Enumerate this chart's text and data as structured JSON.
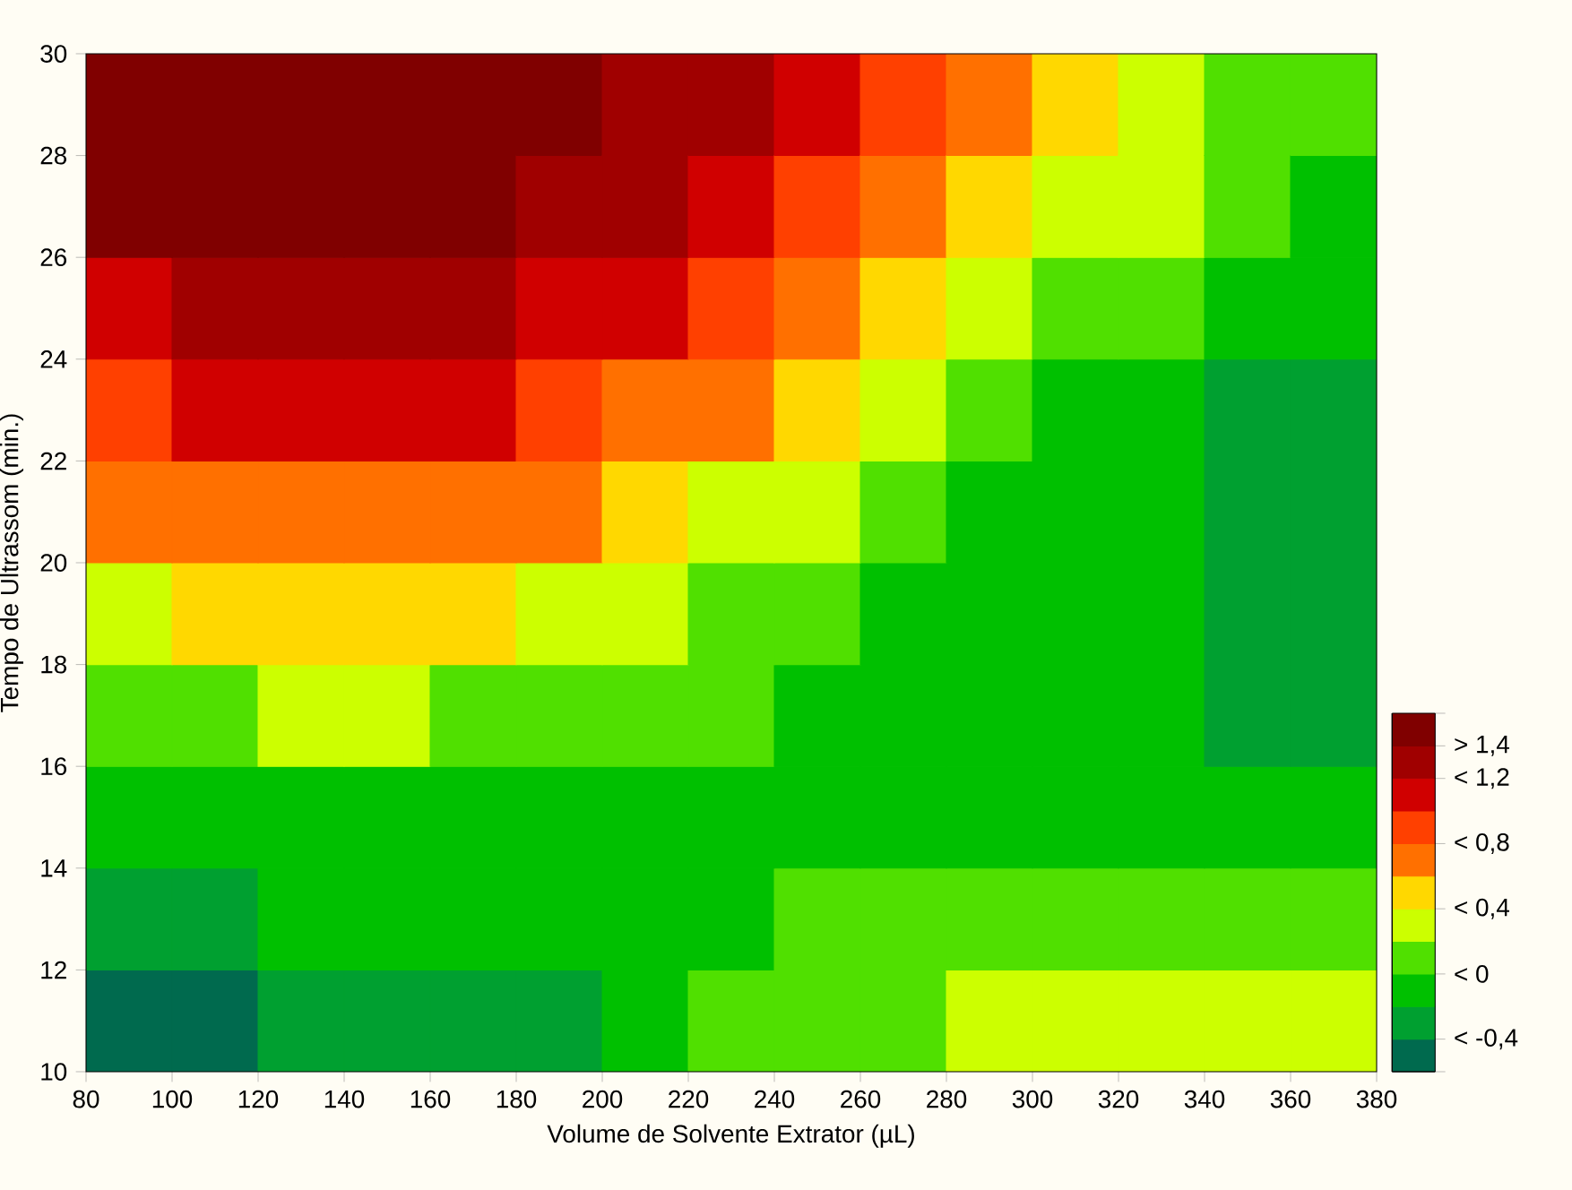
{
  "chart_data": {
    "type": "heatmap",
    "xlabel": "Volume de Solvente Extrator (µL)",
    "ylabel": "Tempo de Ultrassom (min.)",
    "xlim": [
      80,
      380
    ],
    "xticks": [
      {
        "value": 80,
        "label": "80"
      },
      {
        "value": 100,
        "label": "100"
      },
      {
        "value": 120,
        "label": "120"
      },
      {
        "value": 140,
        "label": "140"
      },
      {
        "value": 160,
        "label": "160"
      },
      {
        "value": 180,
        "label": "180"
      },
      {
        "value": 200,
        "label": "200"
      },
      {
        "value": 220,
        "label": "220"
      },
      {
        "value": 240,
        "label": "240"
      },
      {
        "value": 260,
        "label": "260"
      },
      {
        "value": 280,
        "label": "280"
      },
      {
        "value": 300,
        "label": "300"
      },
      {
        "value": 320,
        "label": "320"
      },
      {
        "value": 340,
        "label": "340"
      },
      {
        "value": 360,
        "label": "360"
      },
      {
        "value": 380,
        "label": "380"
      }
    ],
    "ylim": [
      10,
      30
    ],
    "yticks": [
      {
        "value": 10,
        "label": "10"
      },
      {
        "value": 12,
        "label": "12"
      },
      {
        "value": 14,
        "label": "14"
      },
      {
        "value": 16,
        "label": "16"
      },
      {
        "value": 18,
        "label": "18"
      },
      {
        "value": 20,
        "label": "20"
      },
      {
        "value": 22,
        "label": "22"
      },
      {
        "value": 24,
        "label": "24"
      },
      {
        "value": 26,
        "label": "26"
      },
      {
        "value": 28,
        "label": "28"
      },
      {
        "value": 30,
        "label": "30"
      }
    ],
    "cells": [
      [
        1.5,
        1.5,
        1.5,
        1.5,
        1.5,
        1.5,
        1.3,
        1.3,
        1.1,
        0.9,
        0.7,
        0.5,
        0.3,
        0.1,
        0.1
      ],
      [
        1.5,
        1.5,
        1.5,
        1.5,
        1.5,
        1.3,
        1.3,
        1.1,
        0.9,
        0.7,
        0.5,
        0.3,
        0.3,
        0.1,
        -0.1
      ],
      [
        1.1,
        1.3,
        1.3,
        1.3,
        1.3,
        1.1,
        1.1,
        0.9,
        0.7,
        0.5,
        0.3,
        0.1,
        0.1,
        -0.1,
        -0.1
      ],
      [
        0.9,
        1.1,
        1.1,
        1.1,
        1.1,
        0.9,
        0.7,
        0.7,
        0.5,
        0.3,
        0.1,
        -0.1,
        -0.1,
        -0.3,
        -0.3
      ],
      [
        0.7,
        0.7,
        0.7,
        0.7,
        0.7,
        0.7,
        0.5,
        0.3,
        0.3,
        0.1,
        -0.1,
        -0.1,
        -0.1,
        -0.3,
        -0.3
      ],
      [
        0.3,
        0.5,
        0.5,
        0.5,
        0.5,
        0.3,
        0.3,
        0.1,
        0.1,
        -0.1,
        -0.1,
        -0.1,
        -0.1,
        -0.3,
        -0.3
      ],
      [
        0.1,
        0.1,
        0.3,
        0.3,
        0.1,
        0.1,
        0.1,
        0.1,
        -0.1,
        -0.1,
        -0.1,
        -0.1,
        -0.1,
        -0.3,
        -0.3
      ],
      [
        -0.1,
        -0.1,
        -0.1,
        -0.1,
        -0.1,
        -0.1,
        -0.1,
        -0.1,
        -0.1,
        -0.1,
        -0.1,
        -0.1,
        -0.1,
        -0.1,
        -0.1
      ],
      [
        -0.3,
        -0.3,
        -0.1,
        -0.1,
        -0.1,
        -0.1,
        -0.1,
        -0.1,
        0.1,
        0.1,
        0.1,
        0.1,
        0.1,
        0.1,
        0.1
      ],
      [
        -0.5,
        -0.5,
        -0.3,
        -0.3,
        -0.3,
        -0.3,
        -0.1,
        0.1,
        0.1,
        0.1,
        0.3,
        0.3,
        0.3,
        0.3,
        0.3
      ]
    ],
    "cticks": [
      {
        "value": 1.6,
        "label": null
      },
      {
        "value": 1.4,
        "label": "> 1,4"
      },
      {
        "value": 1.2,
        "label": "< 1,2"
      },
      {
        "value": 0.8,
        "label": "< 0,8"
      },
      {
        "value": 0.4,
        "label": "< 0,4"
      },
      {
        "value": 0,
        "label": "< 0"
      },
      {
        "value": -0.4,
        "label": "< -0,4"
      },
      {
        "value": -0.6,
        "label": null
      }
    ],
    "grid": false
  }
}
